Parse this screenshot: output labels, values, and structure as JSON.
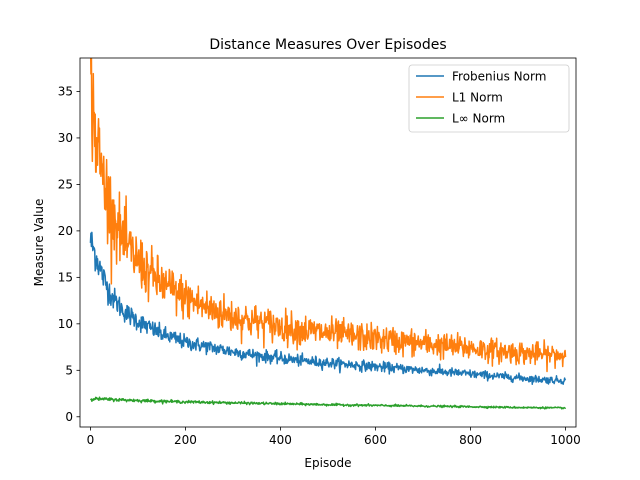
{
  "chart_data": {
    "type": "line",
    "title": "Distance Measures Over Episodes",
    "xlabel": "Episode",
    "ylabel": "Measure Value",
    "xlim": [
      -22,
      1022
    ],
    "ylim": [
      -1.1,
      38.6
    ],
    "xticks": [
      0,
      200,
      400,
      600,
      800,
      1000
    ],
    "yticks": [
      0,
      5,
      10,
      15,
      20,
      25,
      30,
      35
    ],
    "grid": false,
    "legend_position": "top-right",
    "series": [
      {
        "name": "Frobenius Norm",
        "color": "#1f77b4",
        "x": [
          0,
          10,
          20,
          30,
          40,
          50,
          60,
          70,
          80,
          100,
          120,
          150,
          200,
          250,
          300,
          350,
          400,
          450,
          500,
          550,
          600,
          650,
          700,
          750,
          800,
          850,
          900,
          950,
          1000
        ],
        "y": [
          19.0,
          17.5,
          16.0,
          14.6,
          13.5,
          12.6,
          12.0,
          11.4,
          11.0,
          10.3,
          9.7,
          8.9,
          8.0,
          7.5,
          7.0,
          6.6,
          6.3,
          6.0,
          5.8,
          5.6,
          5.4,
          5.2,
          5.0,
          4.8,
          4.6,
          4.4,
          4.2,
          4.0,
          3.9
        ]
      },
      {
        "name": "L1 Norm",
        "color": "#ff7f0e",
        "x": [
          0,
          5,
          10,
          20,
          30,
          40,
          50,
          60,
          70,
          80,
          100,
          120,
          150,
          200,
          250,
          300,
          350,
          400,
          450,
          500,
          550,
          600,
          650,
          700,
          750,
          800,
          850,
          900,
          950,
          1000
        ],
        "y": [
          36.5,
          33.0,
          30.5,
          27.5,
          25.0,
          23.0,
          21.5,
          20.0,
          19.0,
          18.0,
          16.8,
          15.6,
          14.3,
          12.8,
          11.6,
          10.8,
          10.2,
          9.7,
          9.3,
          9.0,
          8.7,
          8.4,
          8.1,
          7.9,
          7.6,
          7.4,
          7.1,
          6.9,
          6.7,
          6.6
        ]
      },
      {
        "name": "L∞ Norm",
        "color": "#2ca02c",
        "x": [
          0,
          100,
          200,
          300,
          400,
          500,
          600,
          700,
          800,
          900,
          1000
        ],
        "y": [
          1.95,
          1.75,
          1.6,
          1.5,
          1.4,
          1.3,
          1.22,
          1.15,
          1.08,
          1.0,
          0.95
        ]
      }
    ]
  }
}
